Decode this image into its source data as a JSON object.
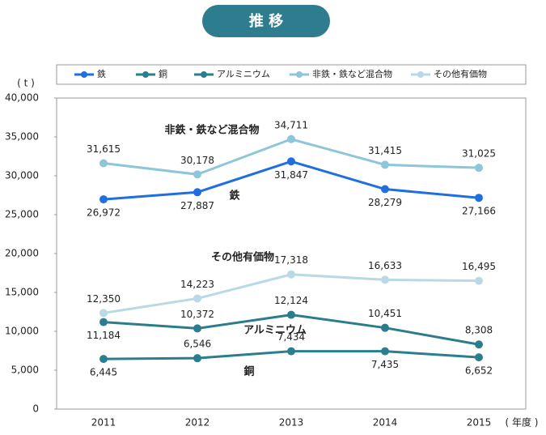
{
  "chart_data": {
    "type": "line",
    "title": "推 移",
    "y_unit": "( t )",
    "x_unit": "( 年度 )",
    "categories": [
      "2011",
      "2012",
      "2013",
      "2014",
      "2015"
    ],
    "ylim": [
      0,
      40000
    ],
    "yticks": [
      0,
      {
        "value": 5000,
        "label": "5,000"
      },
      {
        "value": 10000,
        "label": "10,000"
      },
      {
        "value": 15000,
        "label": "15,000"
      },
      {
        "value": 20000,
        "label": "20,000"
      },
      {
        "value": 25000,
        "label": "25,000"
      },
      {
        "value": 30000,
        "label": "30,000"
      },
      {
        "value": 35000,
        "label": "35,000"
      },
      {
        "value": 40000,
        "label": "40,000"
      }
    ],
    "series": [
      {
        "name": "鉄",
        "color": "#1f6fe0",
        "values": [
          26972,
          27887,
          31847,
          28279,
          27166
        ],
        "value_labels": [
          "26,972",
          "27,887",
          "31,847",
          "28,279",
          "27,166"
        ]
      },
      {
        "name": "銅",
        "color": "#2a7f8f",
        "values": [
          6445,
          6546,
          7434,
          7435,
          6652
        ],
        "value_labels": [
          "6,445",
          "6,546",
          "7,434",
          "7,435",
          "6,652"
        ]
      },
      {
        "name": "アルミニウム",
        "color": "#2b7d8e",
        "values": [
          11184,
          10372,
          12124,
          10451,
          8308
        ],
        "value_labels": [
          "11,184",
          "10,372",
          "12,124",
          "10,451",
          "8,308"
        ]
      },
      {
        "name": "非鉄・鉄など混合物",
        "color": "#8cc6d8",
        "values": [
          31615,
          30178,
          34711,
          31415,
          31025
        ],
        "value_labels": [
          "31,615",
          "30,178",
          "34,711",
          "31,415",
          "31,025"
        ]
      },
      {
        "name": "その他有価物",
        "color": "#b9d9e5",
        "values": [
          12350,
          14223,
          17318,
          16633,
          16495
        ],
        "value_labels": [
          "12,350",
          "14,223",
          "17,318",
          "16,633",
          "16,495"
        ]
      }
    ]
  }
}
